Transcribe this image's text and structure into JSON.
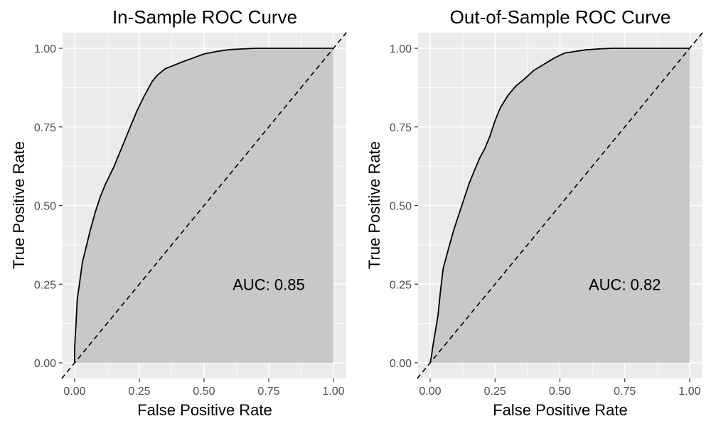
{
  "chart_data": [
    {
      "type": "line",
      "title": "In-Sample ROC Curve",
      "xlabel": "False Positive Rate",
      "ylabel": "True Positive Rate",
      "xlim": [
        0,
        1
      ],
      "ylim": [
        0,
        1
      ],
      "xticks": [
        0,
        0.25,
        0.5,
        0.75,
        1
      ],
      "xtick_labels": [
        "0.00",
        "0.25",
        "0.50",
        "0.75",
        "1.00"
      ],
      "yticks": [
        0,
        0.25,
        0.5,
        0.75,
        1
      ],
      "ytick_labels": [
        "0.00",
        "0.25",
        "0.50",
        "0.75",
        "1.00"
      ],
      "grid": true,
      "reference_line": "diagonal y = x (dashed)",
      "annotation": {
        "text": "AUC: 0.85",
        "x": 0.75,
        "y": 0.25
      },
      "series": [
        {
          "name": "ROC",
          "area_fill": "#c8c8c8",
          "line_color": "#000000",
          "x": [
            0,
            0,
            0.005,
            0.01,
            0.02,
            0.03,
            0.045,
            0.06,
            0.08,
            0.1,
            0.12,
            0.15,
            0.18,
            0.21,
            0.24,
            0.27,
            0.3,
            0.32,
            0.35,
            0.38,
            0.42,
            0.46,
            0.5,
            0.55,
            0.6,
            0.65,
            0.7,
            0.8,
            0.9,
            1
          ],
          "y": [
            0,
            0.05,
            0.12,
            0.2,
            0.26,
            0.32,
            0.37,
            0.42,
            0.48,
            0.53,
            0.57,
            0.62,
            0.68,
            0.74,
            0.8,
            0.85,
            0.895,
            0.915,
            0.935,
            0.945,
            0.958,
            0.97,
            0.982,
            0.99,
            0.996,
            0.998,
            1,
            1,
            1,
            1
          ]
        }
      ]
    },
    {
      "type": "line",
      "title": "Out-of-Sample ROC Curve",
      "xlabel": "False Positive Rate",
      "ylabel": "True Positive Rate",
      "xlim": [
        0,
        1
      ],
      "ylim": [
        0,
        1
      ],
      "xticks": [
        0,
        0.25,
        0.5,
        0.75,
        1
      ],
      "xtick_labels": [
        "0.00",
        "0.25",
        "0.50",
        "0.75",
        "1.00"
      ],
      "yticks": [
        0,
        0.25,
        0.5,
        0.75,
        1
      ],
      "ytick_labels": [
        "0.00",
        "0.25",
        "0.50",
        "0.75",
        "1.00"
      ],
      "grid": true,
      "reference_line": "diagonal y = x (dashed)",
      "annotation": {
        "text": "AUC: 0.82",
        "x": 0.75,
        "y": 0.25
      },
      "series": [
        {
          "name": "ROC",
          "area_fill": "#c8c8c8",
          "line_color": "#000000",
          "x": [
            0,
            0.005,
            0.01,
            0.02,
            0.03,
            0.04,
            0.05,
            0.07,
            0.09,
            0.11,
            0.13,
            0.15,
            0.17,
            0.19,
            0.21,
            0.23,
            0.25,
            0.27,
            0.3,
            0.33,
            0.36,
            0.4,
            0.44,
            0.48,
            0.52,
            0.56,
            0.6,
            0.65,
            0.7,
            0.8,
            0.9,
            1
          ],
          "y": [
            0,
            0.02,
            0.05,
            0.1,
            0.15,
            0.23,
            0.3,
            0.36,
            0.42,
            0.47,
            0.52,
            0.57,
            0.61,
            0.65,
            0.68,
            0.72,
            0.77,
            0.81,
            0.85,
            0.88,
            0.9,
            0.93,
            0.95,
            0.97,
            0.985,
            0.99,
            0.995,
            0.998,
            1,
            1,
            1,
            1
          ]
        }
      ]
    }
  ]
}
